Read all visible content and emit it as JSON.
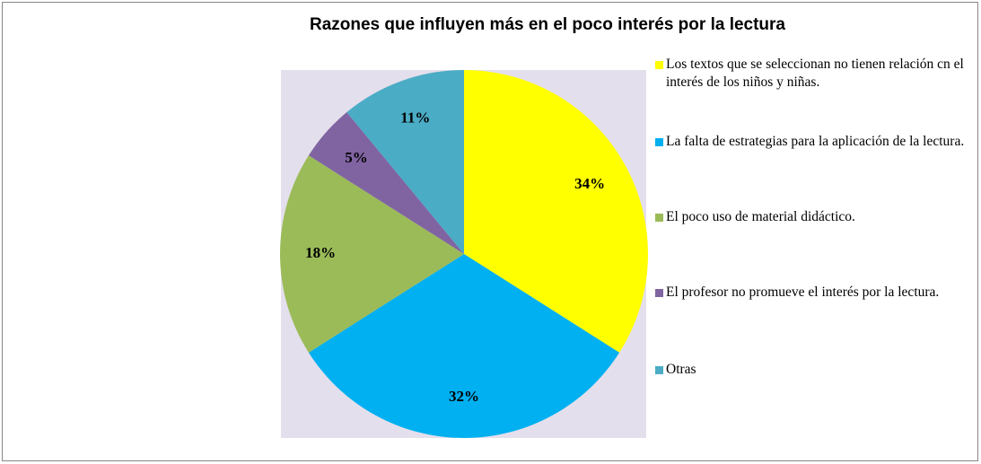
{
  "chart_data": {
    "type": "pie",
    "title": "Razones que influyen más en el poco interés por la lectura",
    "categories": [
      "Los textos que se seleccionan no tienen relación cn el interés de los niños y niñas.",
      "La falta de estrategias para la aplicación de la lectura.",
      "El poco uso de material didáctico.",
      "El  profesor no promueve el interés por la lectura.",
      "Otras"
    ],
    "values": [
      34,
      32,
      18,
      5,
      11
    ],
    "value_labels": [
      "34%",
      "32%",
      "18%",
      "5%",
      "11%"
    ],
    "colors": [
      "#FFFF00",
      "#00B0F0",
      "#9BBB59",
      "#8064A2",
      "#4BACC6"
    ],
    "legend": "right"
  }
}
